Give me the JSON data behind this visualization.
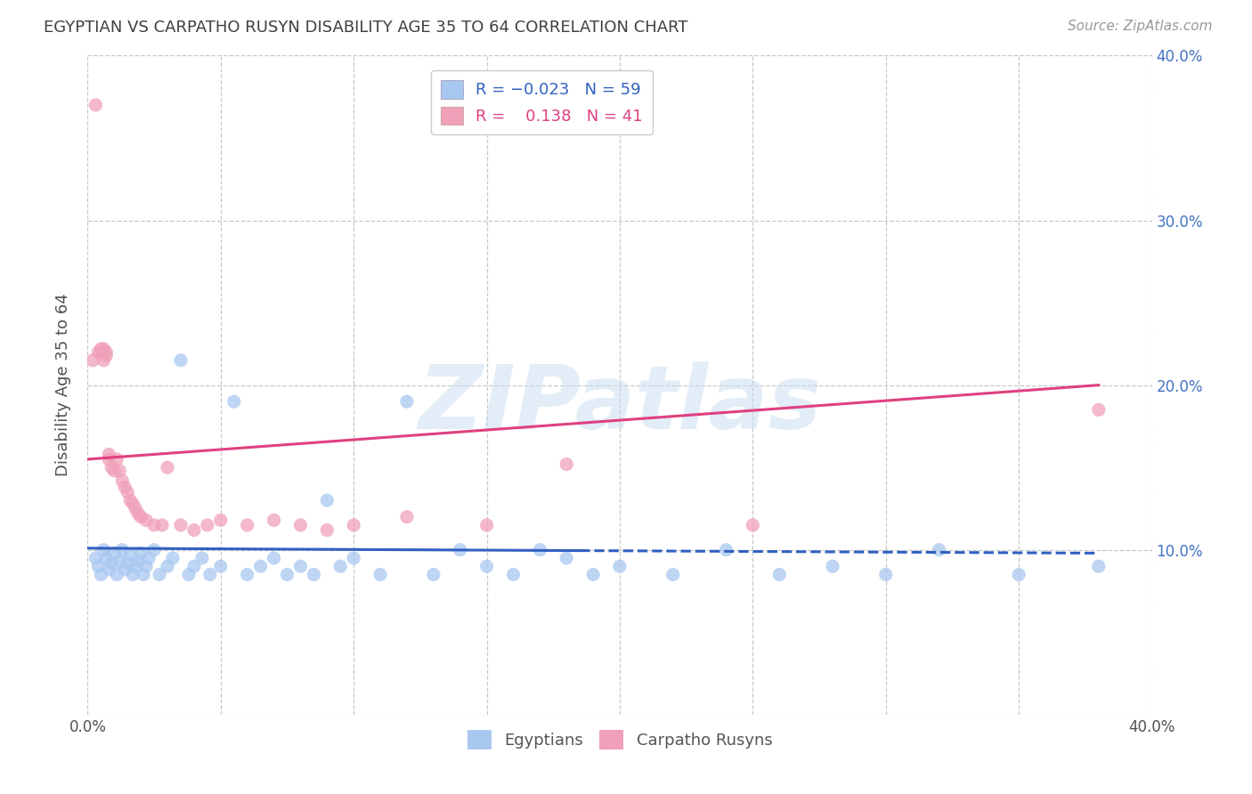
{
  "title": "EGYPTIAN VS CARPATHO RUSYN DISABILITY AGE 35 TO 64 CORRELATION CHART",
  "source": "Source: ZipAtlas.com",
  "ylabel": "Disability Age 35 to 64",
  "xlim": [
    0.0,
    0.4
  ],
  "ylim": [
    0.0,
    0.4
  ],
  "xticks": [
    0.0,
    0.05,
    0.1,
    0.15,
    0.2,
    0.25,
    0.3,
    0.35,
    0.4
  ],
  "yticks": [
    0.0,
    0.1,
    0.2,
    0.3,
    0.4
  ],
  "right_tick_labels": [
    "",
    "10.0%",
    "20.0%",
    "30.0%",
    "40.0%"
  ],
  "watermark": "ZIPatlas",
  "color_egyptian": "#a8c8f0",
  "color_carpatho": "#f0a0b8",
  "color_line_egyptian": "#3060c0",
  "color_line_carpatho": "#e04080",
  "scatter_size": 120,
  "scatter_alpha": 0.75,
  "background_color": "#ffffff",
  "grid_color": "#c8c8c8",
  "title_color": "#404040",
  "axis_label_color": "#505050",
  "right_tick_color": "#4472c4",
  "egyptians_x": [
    0.003,
    0.004,
    0.005,
    0.006,
    0.007,
    0.008,
    0.009,
    0.01,
    0.011,
    0.012,
    0.013,
    0.014,
    0.015,
    0.016,
    0.017,
    0.018,
    0.019,
    0.02,
    0.021,
    0.022,
    0.023,
    0.025,
    0.027,
    0.03,
    0.032,
    0.035,
    0.038,
    0.04,
    0.043,
    0.046,
    0.05,
    0.055,
    0.06,
    0.065,
    0.07,
    0.075,
    0.08,
    0.085,
    0.09,
    0.095,
    0.1,
    0.11,
    0.12,
    0.13,
    0.14,
    0.15,
    0.16,
    0.17,
    0.18,
    0.19,
    0.2,
    0.22,
    0.24,
    0.26,
    0.28,
    0.3,
    0.32,
    0.35,
    0.38
  ],
  "egyptians_y": [
    0.095,
    0.09,
    0.085,
    0.1,
    0.095,
    0.088,
    0.092,
    0.098,
    0.085,
    0.093,
    0.1,
    0.088,
    0.092,
    0.097,
    0.085,
    0.09,
    0.093,
    0.098,
    0.085,
    0.09,
    0.095,
    0.1,
    0.085,
    0.09,
    0.095,
    0.215,
    0.085,
    0.09,
    0.095,
    0.085,
    0.09,
    0.19,
    0.085,
    0.09,
    0.095,
    0.085,
    0.09,
    0.085,
    0.13,
    0.09,
    0.095,
    0.085,
    0.19,
    0.085,
    0.1,
    0.09,
    0.085,
    0.1,
    0.095,
    0.085,
    0.09,
    0.085,
    0.1,
    0.085,
    0.09,
    0.085,
    0.1,
    0.085,
    0.09
  ],
  "carpatho_x": [
    0.002,
    0.004,
    0.005,
    0.006,
    0.007,
    0.008,
    0.009,
    0.01,
    0.011,
    0.012,
    0.013,
    0.014,
    0.015,
    0.016,
    0.017,
    0.018,
    0.019,
    0.02,
    0.022,
    0.025,
    0.028,
    0.03,
    0.035,
    0.04,
    0.045,
    0.05,
    0.06,
    0.07,
    0.08,
    0.09,
    0.1,
    0.12,
    0.15,
    0.18,
    0.25,
    0.38,
    0.003,
    0.005,
    0.006,
    0.007,
    0.008
  ],
  "carpatho_y": [
    0.215,
    0.22,
    0.222,
    0.215,
    0.22,
    0.155,
    0.15,
    0.148,
    0.155,
    0.148,
    0.142,
    0.138,
    0.135,
    0.13,
    0.128,
    0.125,
    0.122,
    0.12,
    0.118,
    0.115,
    0.115,
    0.15,
    0.115,
    0.112,
    0.115,
    0.118,
    0.115,
    0.118,
    0.115,
    0.112,
    0.115,
    0.12,
    0.115,
    0.152,
    0.115,
    0.185,
    0.37,
    0.22,
    0.222,
    0.218,
    0.158
  ],
  "trend_egyptian_x0": 0.0,
  "trend_egyptian_x_solid_end": 0.185,
  "trend_egyptian_x1": 0.38,
  "trend_egyptian_y0": 0.101,
  "trend_egyptian_y_solid_end": 0.0995,
  "trend_egyptian_y1": 0.098,
  "trend_carpatho_x0": 0.0,
  "trend_carpatho_x1": 0.38,
  "trend_carpatho_y0": 0.155,
  "trend_carpatho_y1": 0.2
}
